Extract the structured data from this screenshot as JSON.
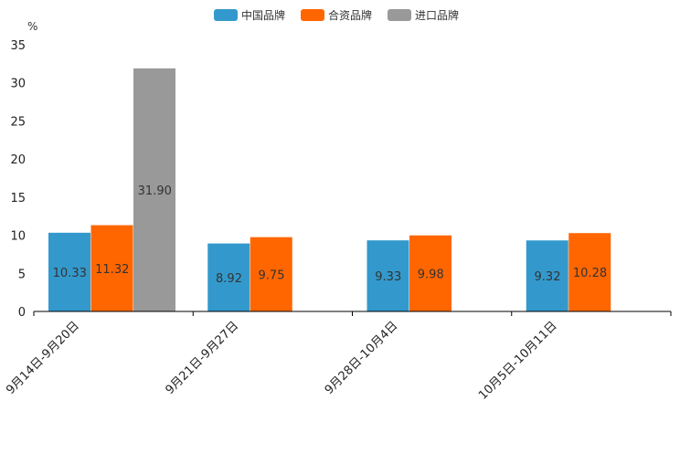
{
  "chart_data": {
    "type": "bar",
    "title": "",
    "ylabel": "%",
    "xlabel": "",
    "ylim": [
      0,
      35
    ],
    "yticks": [
      0,
      5,
      10,
      15,
      20,
      25,
      30,
      35
    ],
    "legend_position": "top-center",
    "grid": false,
    "categories": [
      "9月14日-9月20日",
      "9月21日-9月27日",
      "9月28日-10月4日",
      "10月5日-10月11日"
    ],
    "series": [
      {
        "name": "中国品牌",
        "color": "#3399cc",
        "values": [
          10.33,
          8.92,
          9.33,
          9.32
        ],
        "labels": [
          "10.33",
          "8.92",
          "9.33",
          "9.32"
        ]
      },
      {
        "name": "合资品牌",
        "color": "#ff6600",
        "values": [
          11.32,
          9.75,
          9.98,
          10.28
        ],
        "labels": [
          "11.32",
          "9.75",
          "9.98",
          "10.28"
        ]
      },
      {
        "name": "进口品牌",
        "color": "#999999",
        "values": [
          31.9,
          null,
          null,
          null
        ],
        "labels": [
          "31.90",
          null,
          null,
          null
        ]
      }
    ]
  }
}
